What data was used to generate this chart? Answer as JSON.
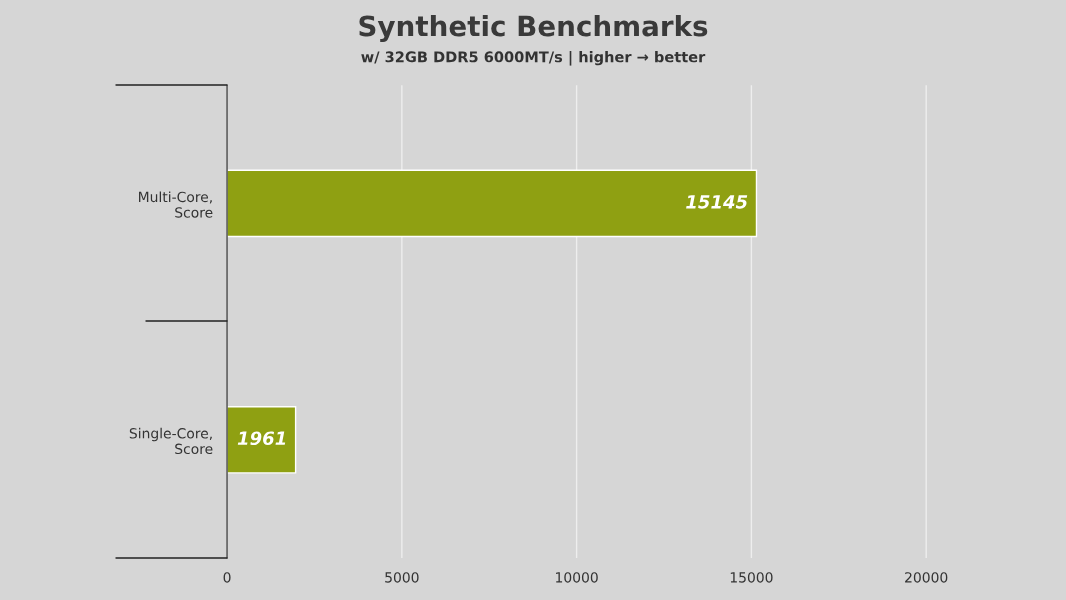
{
  "chart_data": {
    "type": "bar",
    "orientation": "horizontal",
    "title": "Synthetic Benchmarks",
    "subtitle": "w/ 32GB DDR5 6000MT/s | higher → better",
    "categories": [
      "Multi-Core,\nScore",
      "Single-Core,\nScore"
    ],
    "values": [
      15145,
      1961
    ],
    "color": "#8fa012",
    "xlim": [
      0,
      24000
    ],
    "xticks": [
      0,
      5000,
      10000,
      15000,
      20000
    ],
    "grid": "x",
    "data_labels": true
  }
}
